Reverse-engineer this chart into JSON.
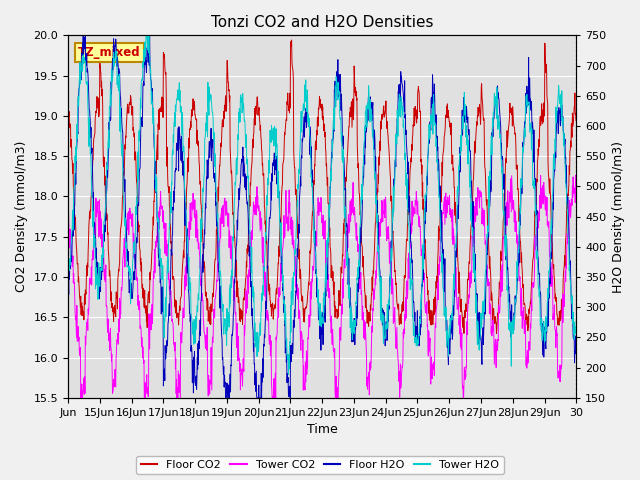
{
  "title": "Tonzi CO2 and H2O Densities",
  "xlabel": "Time",
  "ylabel_left": "CO2 Density (mmol/m3)",
  "ylabel_right": "H2O Density (mmol/m3)",
  "ylim_left": [
    15.5,
    20.0
  ],
  "ylim_right": [
    150,
    750
  ],
  "annotation_text": "TZ_mixed",
  "annotation_box_facecolor": "#ffff99",
  "annotation_box_edgecolor": "#bb8800",
  "xtick_labels": [
    "Jun",
    "15Jun",
    "16Jun",
    "17Jun",
    "18Jun",
    "19Jun",
    "20Jun",
    "21Jun",
    "22Jun",
    "23Jun",
    "24Jun",
    "25Jun",
    "26Jun",
    "27Jun",
    "28Jun",
    "29Jun",
    "30"
  ],
  "colors": {
    "floor_co2": "#cc0000",
    "tower_co2": "#ff00ff",
    "floor_h2o": "#0000bb",
    "tower_h2o": "#00cccc"
  },
  "legend_labels": [
    "Floor CO2",
    "Tower CO2",
    "Floor H2O",
    "Tower H2O"
  ],
  "fig_facecolor": "#f0f0f0",
  "ax_facecolor": "#e0e0e0",
  "grid_color": "#ffffff",
  "n_points": 1440
}
